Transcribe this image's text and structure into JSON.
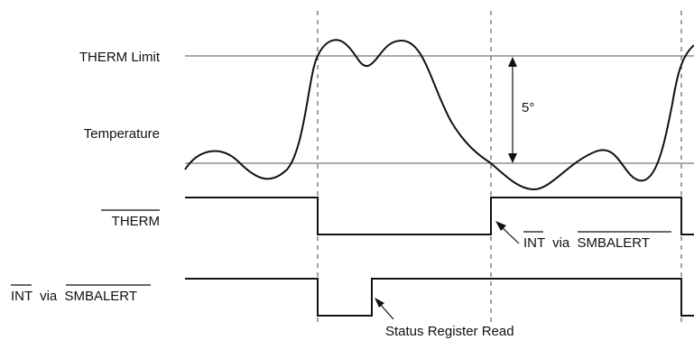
{
  "labels": {
    "therm_limit": "THERM Limit",
    "temperature": "Temperature",
    "therm_signal": "THERM",
    "int_prefix": "INT",
    "via": "via",
    "smbalert": "SMBALERT",
    "hysteresis": "5°",
    "status_read": "Status Register Read"
  }
}
